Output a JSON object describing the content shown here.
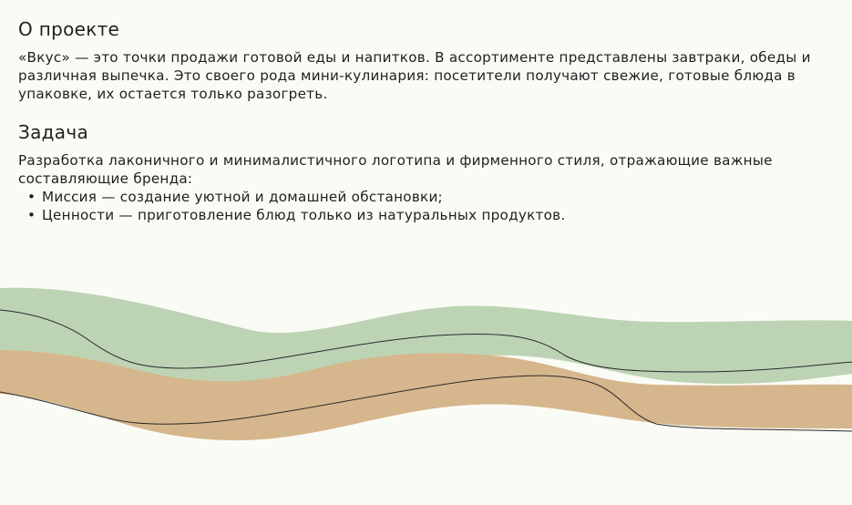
{
  "about": {
    "title": "О проекте",
    "text": "«Вкус» — это точки продажи готовой еды и напитков. В ассортименте представлены завтраки, обеды и различная выпечка. Это своего рода мини-кулинария: посетители получают свежие, готовые блюда в упаковке, их остается только разогреть."
  },
  "task": {
    "title": "Задача",
    "text": "Разработка лаконичного и минималистичного логотипа и фирменного стиля, отражающие важные составляющие бренда:",
    "items": [
      "Миссия — создание уютной и домашней обстановки;",
      "Ценности — приготовление блюд только из натуральных продуктов."
    ],
    "bullet": "•"
  },
  "colors": {
    "background": "#fbfbf6",
    "green_wave": "#bdd4b4",
    "tan_wave": "#d6b68c",
    "line": "#2a2a2a"
  }
}
